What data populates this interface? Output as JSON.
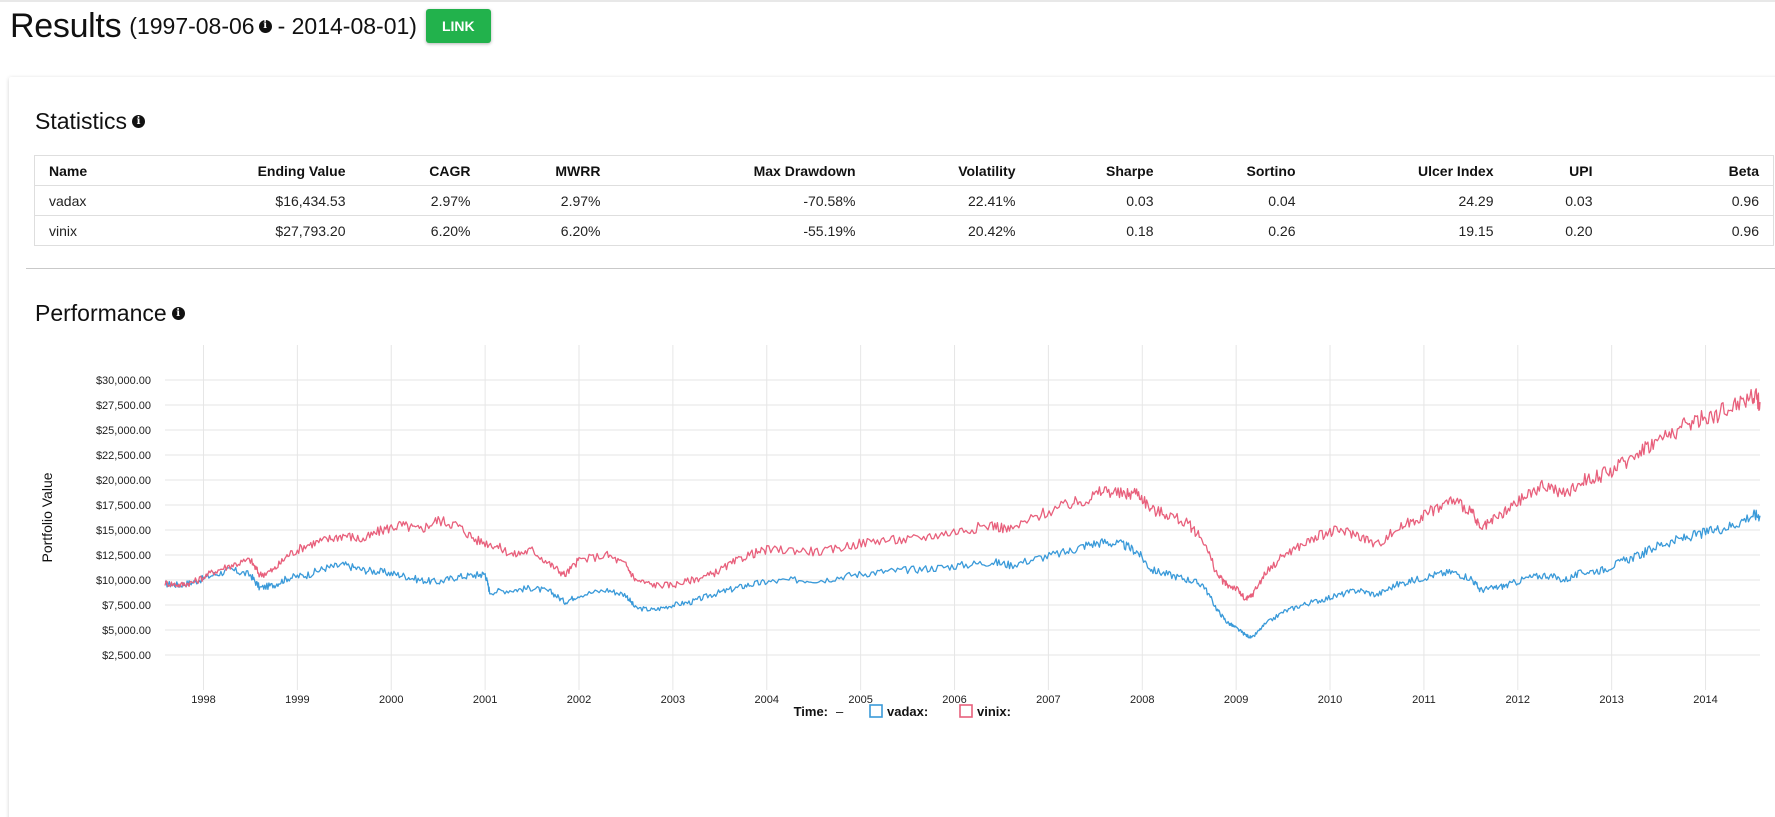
{
  "header": {
    "title": "Results",
    "range_open": "(1997-08-06",
    "range_close": " - 2014-08-01)",
    "link_label": "LINK"
  },
  "statistics": {
    "title": "Statistics",
    "columns": [
      "Name",
      "Ending Value",
      "CAGR",
      "MWRR",
      "Max Drawdown",
      "Volatility",
      "Sharpe",
      "Sortino",
      "Ulcer Index",
      "UPI",
      "Beta"
    ],
    "rows": [
      [
        "vadax",
        "$16,434.53",
        "2.97%",
        "2.97%",
        "-70.58%",
        "22.41%",
        "0.03",
        "0.04",
        "24.29",
        "0.03",
        "0.96"
      ],
      [
        "vinix",
        "$27,793.20",
        "6.20%",
        "6.20%",
        "-55.19%",
        "20.42%",
        "0.18",
        "0.26",
        "19.15",
        "0.20",
        "0.96"
      ]
    ]
  },
  "performance": {
    "title": "Performance"
  },
  "chart_data": {
    "type": "line",
    "ylabel": "Portfolio Value",
    "xlabel": "",
    "xlim": [
      1997.59,
      2014.58
    ],
    "ylim": [
      0,
      32500
    ],
    "y_ticks": [
      "$2,500.00",
      "$5,000.00",
      "$7,500.00",
      "$10,000.00",
      "$12,500.00",
      "$15,000.00",
      "$17,500.00",
      "$20,000.00",
      "$22,500.00",
      "$25,000.00",
      "$27,500.00",
      "$30,000.00"
    ],
    "y_tick_values": [
      2500,
      5000,
      7500,
      10000,
      12500,
      15000,
      17500,
      20000,
      22500,
      25000,
      27500,
      30000
    ],
    "x_ticks": [
      "1998",
      "1999",
      "2000",
      "2001",
      "2002",
      "2003",
      "2004",
      "2005",
      "2006",
      "2007",
      "2008",
      "2009",
      "2010",
      "2011",
      "2012",
      "2013",
      "2014"
    ],
    "grid": true,
    "legend": {
      "placement": "bottom",
      "time_label": "Time:",
      "time_value": "–",
      "entries": [
        "vadax:",
        "vinix:"
      ]
    },
    "series": [
      {
        "name": "vadax",
        "color": "#3a9ad9",
        "x": [
          1997.59,
          1997.75,
          1997.9,
          1998.1,
          1998.3,
          1998.5,
          1998.6,
          1998.75,
          1998.9,
          1999.1,
          1999.3,
          1999.5,
          1999.7,
          1999.9,
          2000.1,
          2000.3,
          2000.5,
          2000.7,
          2000.9,
          2001.0,
          2001.05,
          2001.3,
          2001.5,
          2001.7,
          2001.85,
          2002.0,
          2002.3,
          2002.5,
          2002.6,
          2002.8,
          2003.0,
          2003.2,
          2003.4,
          2003.6,
          2003.8,
          2004.0,
          2004.3,
          2004.6,
          2004.9,
          2005.2,
          2005.5,
          2005.8,
          2006.1,
          2006.4,
          2006.6,
          2006.9,
          2007.2,
          2007.4,
          2007.6,
          2007.8,
          2007.95,
          2008.1,
          2008.3,
          2008.5,
          2008.65,
          2008.8,
          2008.9,
          2009.0,
          2009.1,
          2009.17,
          2009.3,
          2009.5,
          2009.7,
          2009.9,
          2010.1,
          2010.3,
          2010.5,
          2010.7,
          2010.9,
          2011.1,
          2011.3,
          2011.5,
          2011.6,
          2011.75,
          2011.9,
          2012.1,
          2012.3,
          2012.5,
          2012.7,
          2012.9,
          2013.1,
          2013.3,
          2013.5,
          2013.7,
          2013.9,
          2014.1,
          2014.3,
          2014.5,
          2014.58
        ],
        "values": [
          9600,
          9500,
          9800,
          10500,
          11000,
          10500,
          9200,
          9500,
          10200,
          10500,
          11200,
          11500,
          11000,
          10800,
          10500,
          10000,
          9800,
          10300,
          10500,
          10600,
          8800,
          9000,
          9200,
          8800,
          7800,
          8500,
          9000,
          8500,
          7200,
          7000,
          7500,
          7800,
          8500,
          9000,
          9500,
          9800,
          10000,
          10000,
          10500,
          10800,
          11000,
          11200,
          11500,
          11800,
          11500,
          12200,
          12800,
          13500,
          13800,
          13500,
          12800,
          11000,
          10500,
          10000,
          9500,
          7000,
          5800,
          5200,
          4500,
          4200,
          5500,
          6800,
          7500,
          8000,
          8500,
          9000,
          8500,
          9500,
          10000,
          10500,
          10800,
          10200,
          9000,
          9200,
          9500,
          10200,
          10500,
          10000,
          10800,
          11000,
          11800,
          12500,
          13500,
          14000,
          14500,
          15000,
          15500,
          16500,
          16434
        ]
      },
      {
        "name": "vinix",
        "color": "#e8607c",
        "x": [
          1997.59,
          1997.75,
          1997.9,
          1998.1,
          1998.3,
          1998.5,
          1998.6,
          1998.75,
          1998.9,
          1999.1,
          1999.3,
          1999.5,
          1999.7,
          1999.9,
          2000.1,
          2000.3,
          2000.5,
          2000.7,
          2000.9,
          2001.1,
          2001.3,
          2001.5,
          2001.7,
          2001.85,
          2002.0,
          2002.3,
          2002.5,
          2002.6,
          2002.8,
          2003.0,
          2003.2,
          2003.4,
          2003.6,
          2003.8,
          2004.0,
          2004.3,
          2004.6,
          2004.9,
          2005.2,
          2005.5,
          2005.8,
          2006.1,
          2006.4,
          2006.6,
          2006.9,
          2007.2,
          2007.4,
          2007.6,
          2007.8,
          2007.95,
          2008.1,
          2008.3,
          2008.5,
          2008.65,
          2008.8,
          2008.9,
          2009.0,
          2009.1,
          2009.17,
          2009.3,
          2009.5,
          2009.7,
          2009.9,
          2010.1,
          2010.3,
          2010.5,
          2010.7,
          2010.9,
          2011.1,
          2011.3,
          2011.5,
          2011.6,
          2011.75,
          2011.9,
          2012.1,
          2012.3,
          2012.5,
          2012.7,
          2012.9,
          2013.1,
          2013.3,
          2013.5,
          2013.7,
          2013.9,
          2014.1,
          2014.3,
          2014.5,
          2014.58
        ],
        "values": [
          9700,
          9500,
          9800,
          10800,
          11500,
          12000,
          10500,
          11000,
          12500,
          13500,
          14000,
          14500,
          14000,
          15000,
          15500,
          15000,
          16000,
          15500,
          14000,
          13500,
          12500,
          13000,
          11500,
          10500,
          12000,
          12500,
          11500,
          10000,
          9500,
          9500,
          10000,
          10500,
          11500,
          12500,
          13000,
          13000,
          12800,
          13500,
          14000,
          14000,
          14500,
          15000,
          15500,
          15000,
          16500,
          17500,
          18000,
          19000,
          18500,
          18800,
          17000,
          16500,
          15500,
          14000,
          10500,
          9500,
          9200,
          8000,
          8500,
          10500,
          12500,
          13500,
          14500,
          15000,
          14500,
          13500,
          15000,
          16000,
          17000,
          18000,
          17000,
          15000,
          16000,
          17000,
          18500,
          19500,
          18500,
          20000,
          20500,
          21500,
          23000,
          24000,
          25000,
          26000,
          26500,
          27500,
          28500,
          27793
        ]
      }
    ]
  }
}
